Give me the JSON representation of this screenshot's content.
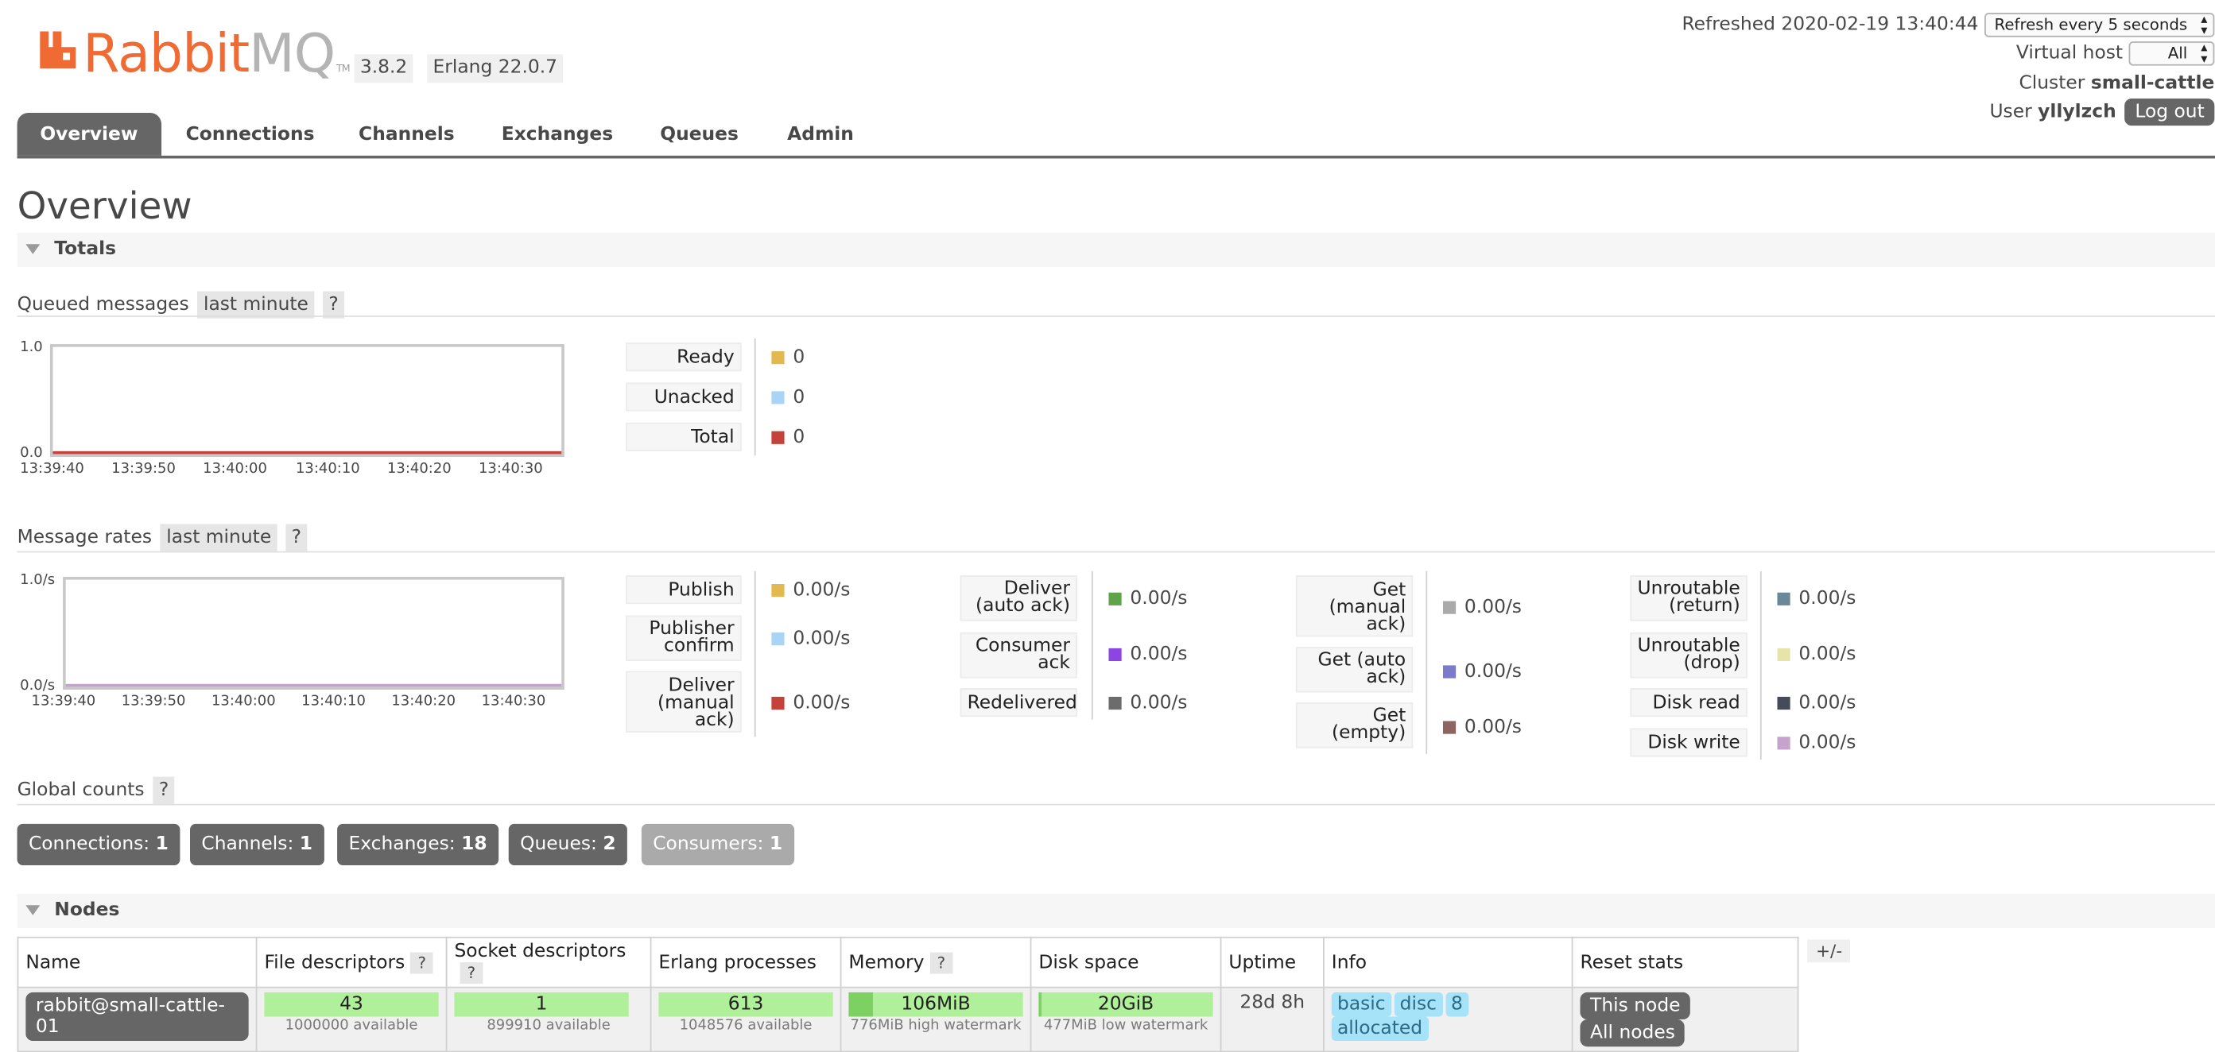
{
  "header": {
    "brand_rabbit": "Rabbit",
    "brand_mq": "MQ",
    "brand_tm": "TM",
    "version": "3.8.2",
    "erlang": "Erlang 22.0.7",
    "refreshed": "Refreshed 2020-02-19 13:40:44",
    "refresh_select": "Refresh every 5 seconds",
    "vhost_label": "Virtual host",
    "vhost_select": "All",
    "cluster_label": "Cluster",
    "cluster_name": "small-cattle",
    "user_label": "User",
    "user_name": "yllylzch",
    "logout": "Log out"
  },
  "tabs": [
    "Overview",
    "Connections",
    "Channels",
    "Exchanges",
    "Queues",
    "Admin"
  ],
  "page_title": "Overview",
  "totals": {
    "section_title": "Totals",
    "queued": {
      "title": "Queued messages",
      "range": "last minute",
      "help": "?",
      "y_top": "1.0",
      "y_bottom": "0.0",
      "x_ticks": [
        "13:39:40",
        "13:39:50",
        "13:40:00",
        "13:40:10",
        "13:40:20",
        "13:40:30"
      ],
      "stats": [
        {
          "label": "Ready",
          "value": "0",
          "color": "#e3b84f"
        },
        {
          "label": "Unacked",
          "value": "0",
          "color": "#a9d4f5"
        },
        {
          "label": "Total",
          "value": "0",
          "color": "#c7413b"
        }
      ]
    },
    "rates": {
      "title": "Message rates",
      "range": "last minute",
      "help": "?",
      "y_top": "1.0/s",
      "y_bottom": "0.0/s",
      "x_ticks": [
        "13:39:40",
        "13:39:50",
        "13:40:00",
        "13:40:10",
        "13:40:20",
        "13:40:30"
      ],
      "col1": [
        {
          "label": "Publish",
          "value": "0.00/s",
          "color": "#e3b84f"
        },
        {
          "label": "Publisher confirm",
          "value": "0.00/s",
          "color": "#a9d4f5"
        },
        {
          "label": "Deliver (manual ack)",
          "value": "0.00/s",
          "color": "#c7413b"
        }
      ],
      "col2": [
        {
          "label": "Deliver (auto ack)",
          "value": "0.00/s",
          "color": "#5fa34a"
        },
        {
          "label": "Consumer ack",
          "value": "0.00/s",
          "color": "#8e44e0"
        },
        {
          "label": "Redelivered",
          "value": "0.00/s",
          "color": "#6c6c6c"
        }
      ],
      "col3": [
        {
          "label": "Get (manual ack)",
          "value": "0.00/s",
          "color": "#aaaaaa"
        },
        {
          "label": "Get (auto ack)",
          "value": "0.00/s",
          "color": "#7b7bc9"
        },
        {
          "label": "Get (empty)",
          "value": "0.00/s",
          "color": "#8d6460"
        }
      ],
      "col4": [
        {
          "label": "Unroutable (return)",
          "value": "0.00/s",
          "color": "#6c8797"
        },
        {
          "label": "Unroutable (drop)",
          "value": "0.00/s",
          "color": "#e6e4a8"
        },
        {
          "label": "Disk read",
          "value": "0.00/s",
          "color": "#444c59"
        },
        {
          "label": "Disk write",
          "value": "0.00/s",
          "color": "#c6a3cf"
        }
      ]
    },
    "global": {
      "title": "Global counts",
      "help": "?",
      "items": [
        {
          "label": "Connections:",
          "value": "1"
        },
        {
          "label": "Channels:",
          "value": "1"
        },
        {
          "label": "Exchanges:",
          "value": "18"
        },
        {
          "label": "Queues:",
          "value": "2"
        },
        {
          "label": "Consumers:",
          "value": "1"
        }
      ]
    }
  },
  "nodes": {
    "section_title": "Nodes",
    "plus_minus": "+/-",
    "columns": [
      "Name",
      "File descriptors",
      "Socket descriptors",
      "Erlang processes",
      "Memory",
      "Disk space",
      "Uptime",
      "Info",
      "Reset stats"
    ],
    "help": "?",
    "row": {
      "name": "rabbit@small-cattle-01",
      "fd_value": "43",
      "fd_sub": "1000000 available",
      "sock_value": "1",
      "sock_sub": "899910 available",
      "erl_value": "613",
      "erl_sub": "1048576 available",
      "mem_value": "106MiB",
      "mem_sub": "776MiB high watermark",
      "mem_fill": 0.137,
      "disk_value": "20GiB",
      "disk_sub": "477MiB low watermark",
      "disk_fill": 0.02,
      "uptime": "28d 8h",
      "info": [
        "basic",
        "disc",
        "8",
        "allocated"
      ],
      "reset_this": "This node",
      "reset_all": "All nodes"
    }
  }
}
